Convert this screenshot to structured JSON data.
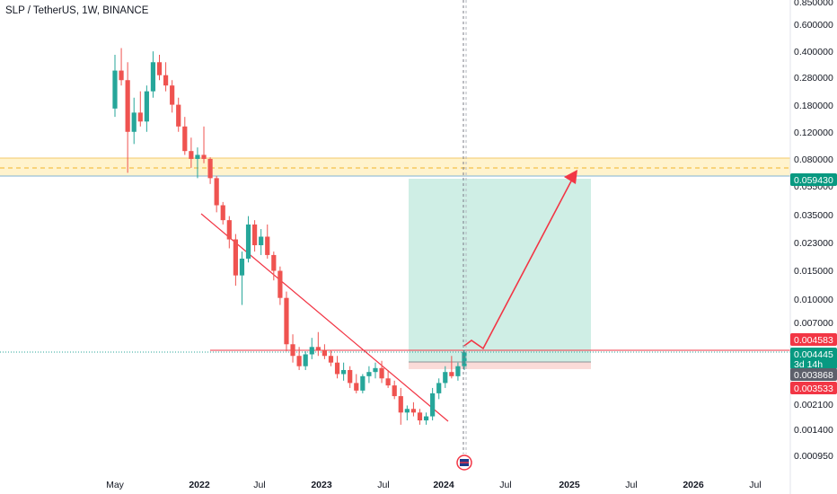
{
  "header": {
    "title": "SLP / TetherUS, 1W, BINANCE"
  },
  "colors": {
    "up": "#26a69a",
    "down": "#ef5350",
    "zone_fill": "#fff3cd",
    "zone_line": "#f0b429",
    "target_fill": "#cfeee5",
    "stop_fill": "#fadbd8",
    "trendline": "#f23645",
    "arrow": "#f23645",
    "badge_green": "#089981",
    "badge_red": "#f23645",
    "badge_gray": "#5d606b"
  },
  "chart_data": {
    "type": "candlestick",
    "scale": "log",
    "y_ticks": [
      "0.850000",
      "0.600000",
      "0.400000",
      "0.280000",
      "0.180000",
      "0.120000",
      "0.080000",
      "0.055000",
      "0.035000",
      "0.023000",
      "0.015000",
      "0.010000",
      "0.007000",
      "0.004583",
      "0.004445",
      "0.003868",
      "0.003533",
      "0.002100",
      "0.001400",
      "0.000950"
    ],
    "x_ticks": [
      "May",
      "2022",
      "Jul",
      "2023",
      "Jul",
      "2024",
      "Jul",
      "2025",
      "Jul",
      "2026",
      "Jul"
    ],
    "price_badges": [
      {
        "label": "0.059430",
        "color": "green"
      },
      {
        "label": "0.004583",
        "color": "red"
      },
      {
        "label": "0.004445",
        "sub": "3d 14h",
        "color": "green"
      },
      {
        "label": "0.003868",
        "color": "gray"
      },
      {
        "label": "0.003533",
        "color": "red"
      }
    ],
    "candles_ohlc_weekly": [
      [
        0.17,
        0.38,
        0.15,
        0.3
      ],
      [
        0.3,
        0.42,
        0.24,
        0.26
      ],
      [
        0.26,
        0.34,
        0.065,
        0.12
      ],
      [
        0.12,
        0.2,
        0.1,
        0.16
      ],
      [
        0.16,
        0.22,
        0.13,
        0.14
      ],
      [
        0.14,
        0.24,
        0.12,
        0.22
      ],
      [
        0.22,
        0.4,
        0.2,
        0.34
      ],
      [
        0.34,
        0.38,
        0.26,
        0.28
      ],
      [
        0.28,
        0.34,
        0.22,
        0.24
      ],
      [
        0.24,
        0.26,
        0.16,
        0.18
      ],
      [
        0.18,
        0.2,
        0.12,
        0.13
      ],
      [
        0.13,
        0.15,
        0.085,
        0.09
      ],
      [
        0.09,
        0.11,
        0.07,
        0.08
      ],
      [
        0.08,
        0.095,
        0.06,
        0.085
      ],
      [
        0.085,
        0.13,
        0.075,
        0.08
      ],
      [
        0.08,
        0.082,
        0.055,
        0.06
      ],
      [
        0.06,
        0.062,
        0.036,
        0.04
      ],
      [
        0.04,
        0.042,
        0.03,
        0.032
      ],
      [
        0.032,
        0.034,
        0.021,
        0.024
      ],
      [
        0.024,
        0.026,
        0.012,
        0.014
      ],
      [
        0.014,
        0.02,
        0.009,
        0.018
      ],
      [
        0.018,
        0.034,
        0.017,
        0.03
      ],
      [
        0.03,
        0.032,
        0.02,
        0.022
      ],
      [
        0.022,
        0.028,
        0.019,
        0.025
      ],
      [
        0.025,
        0.03,
        0.018,
        0.019
      ],
      [
        0.019,
        0.02,
        0.013,
        0.015
      ],
      [
        0.015,
        0.016,
        0.009,
        0.01
      ],
      [
        0.01,
        0.011,
        0.0045,
        0.005
      ],
      [
        0.005,
        0.0058,
        0.0038,
        0.0042
      ],
      [
        0.0042,
        0.0048,
        0.0034,
        0.0036
      ],
      [
        0.0036,
        0.0045,
        0.0034,
        0.0043
      ],
      [
        0.0043,
        0.0055,
        0.004,
        0.0048
      ],
      [
        0.0048,
        0.006,
        0.0042,
        0.0046
      ],
      [
        0.0046,
        0.005,
        0.004,
        0.0042
      ],
      [
        0.0042,
        0.0046,
        0.0036,
        0.0038
      ],
      [
        0.0038,
        0.0042,
        0.003,
        0.0032
      ],
      [
        0.0032,
        0.0038,
        0.0029,
        0.0034
      ],
      [
        0.0034,
        0.0036,
        0.0026,
        0.0028
      ],
      [
        0.0028,
        0.0032,
        0.0024,
        0.0025
      ],
      [
        0.0025,
        0.0032,
        0.0024,
        0.0031
      ],
      [
        0.0031,
        0.0036,
        0.0028,
        0.0033
      ],
      [
        0.0033,
        0.0038,
        0.003,
        0.0035
      ],
      [
        0.0035,
        0.0039,
        0.0028,
        0.003
      ],
      [
        0.003,
        0.0034,
        0.0026,
        0.0027
      ],
      [
        0.0027,
        0.0029,
        0.0022,
        0.0023
      ],
      [
        0.0023,
        0.0026,
        0.0015,
        0.0018
      ],
      [
        0.0018,
        0.002,
        0.0016,
        0.0019
      ],
      [
        0.0019,
        0.0021,
        0.0017,
        0.0018
      ],
      [
        0.0018,
        0.0019,
        0.0015,
        0.0016
      ],
      [
        0.0016,
        0.0018,
        0.0015,
        0.0017
      ],
      [
        0.0017,
        0.0026,
        0.0016,
        0.0024
      ],
      [
        0.0024,
        0.003,
        0.0022,
        0.0028
      ],
      [
        0.0028,
        0.0036,
        0.0026,
        0.0033
      ],
      [
        0.0033,
        0.0042,
        0.003,
        0.0031
      ],
      [
        0.0031,
        0.0038,
        0.0029,
        0.0036
      ],
      [
        0.0036,
        0.0046,
        0.0034,
        0.00445
      ]
    ]
  }
}
